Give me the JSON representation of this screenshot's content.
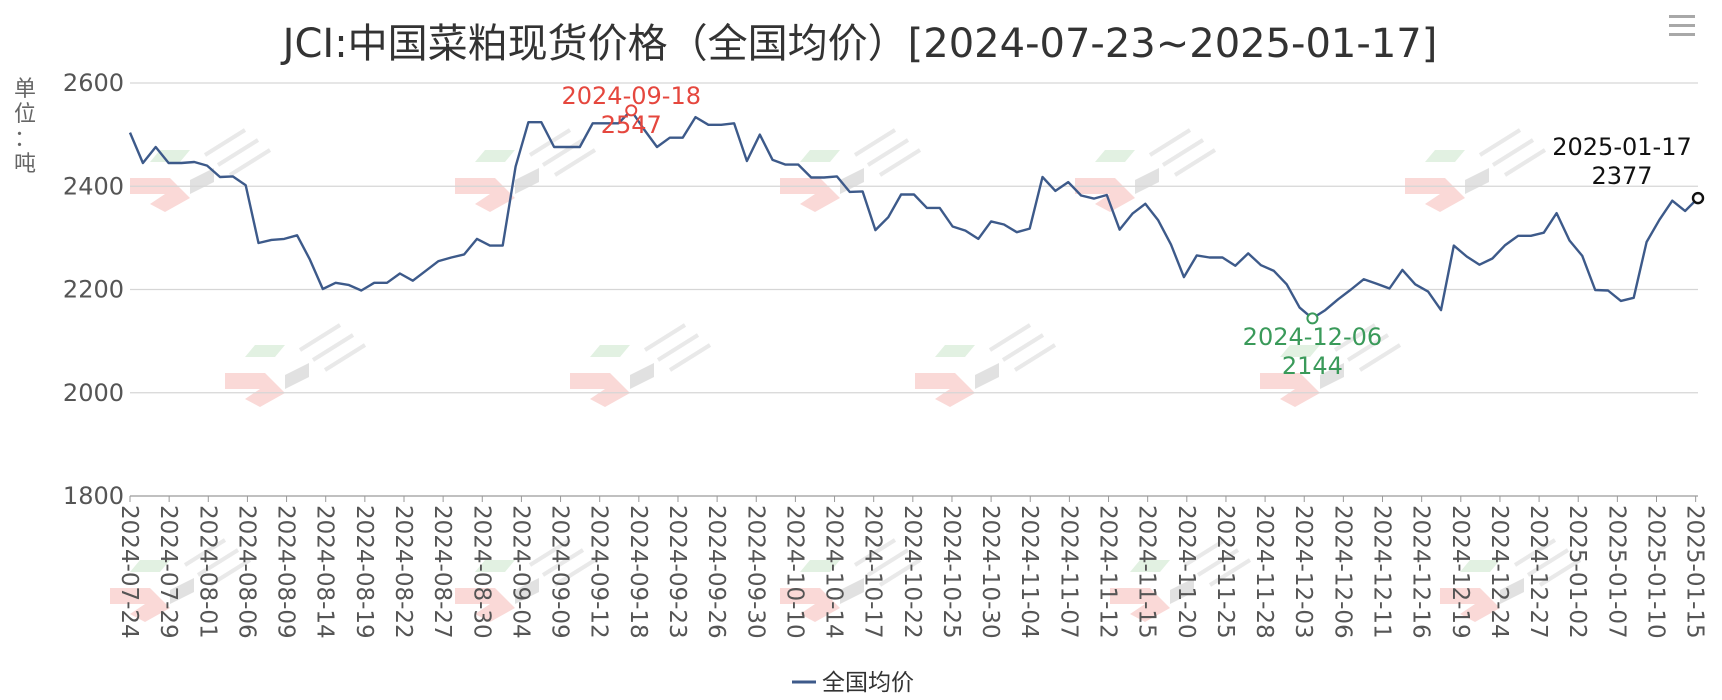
{
  "chart_data": {
    "type": "line",
    "title": "JCI:中国菜粕现货价格（全国均价）[2024-07-23~2025-01-17]",
    "ylabel": "单位：吨",
    "ylim": [
      1800,
      2600
    ],
    "yticks": [
      1800,
      2000,
      2200,
      2400,
      2600
    ],
    "grid": true,
    "legend_position": "bottom",
    "xtick_labels": [
      "2024-07-24",
      "2024-07-29",
      "2024-08-01",
      "2024-08-06",
      "2024-08-09",
      "2024-08-14",
      "2024-08-19",
      "2024-08-22",
      "2024-08-27",
      "2024-08-30",
      "2024-09-04",
      "2024-09-09",
      "2024-09-12",
      "2024-09-18",
      "2024-09-23",
      "2024-09-26",
      "2024-09-30",
      "2024-10-10",
      "2024-10-14",
      "2024-10-17",
      "2024-10-22",
      "2024-10-25",
      "2024-10-30",
      "2024-11-04",
      "2024-11-07",
      "2024-11-12",
      "2024-11-15",
      "2024-11-20",
      "2024-11-25",
      "2024-11-28",
      "2024-12-03",
      "2024-12-06",
      "2024-12-11",
      "2024-12-16",
      "2024-12-19",
      "2024-12-24",
      "2024-12-27",
      "2025-01-02",
      "2025-01-07",
      "2025-01-10",
      "2025-01-15"
    ],
    "series": [
      {
        "name": "全国均价",
        "color": "#3d5a8a",
        "values": [
          2504,
          2445,
          2476,
          2445,
          2445,
          2447,
          2440,
          2418,
          2419,
          2402,
          2290,
          2296,
          2298,
          2305,
          2258,
          2201,
          2213,
          2209,
          2198,
          2213,
          2213,
          2231,
          2217,
          2236,
          2255,
          2262,
          2268,
          2298,
          2285,
          2285,
          2438,
          2524,
          2524,
          2476,
          2476,
          2476,
          2522,
          2522,
          2522,
          2547,
          2510,
          2476,
          2494,
          2494,
          2534,
          2519,
          2519,
          2522,
          2449,
          2500,
          2451,
          2442,
          2442,
          2417,
          2417,
          2419,
          2389,
          2390,
          2315,
          2340,
          2384,
          2384,
          2358,
          2358,
          2322,
          2314,
          2298,
          2332,
          2326,
          2311,
          2318,
          2418,
          2391,
          2408,
          2382,
          2376,
          2383,
          2316,
          2347,
          2366,
          2334,
          2287,
          2224,
          2266,
          2262,
          2262,
          2246,
          2270,
          2247,
          2236,
          2210,
          2165,
          2144,
          2160,
          2181,
          2200,
          2220,
          2211,
          2202,
          2238,
          2210,
          2196,
          2160,
          2285,
          2264,
          2248,
          2260,
          2286,
          2304,
          2304,
          2310,
          2348,
          2295,
          2265,
          2199,
          2198,
          2178,
          2184,
          2292,
          2335,
          2372,
          2352,
          2377
        ]
      }
    ],
    "annotations": {
      "max": {
        "date": "2024-09-18",
        "value": 2547
      },
      "min": {
        "date": "2024-12-06",
        "value": 2144
      },
      "last": {
        "date": "2025-01-17",
        "value": 2377
      }
    }
  },
  "ui": {
    "menu_icon": "hamburger-menu-icon"
  }
}
